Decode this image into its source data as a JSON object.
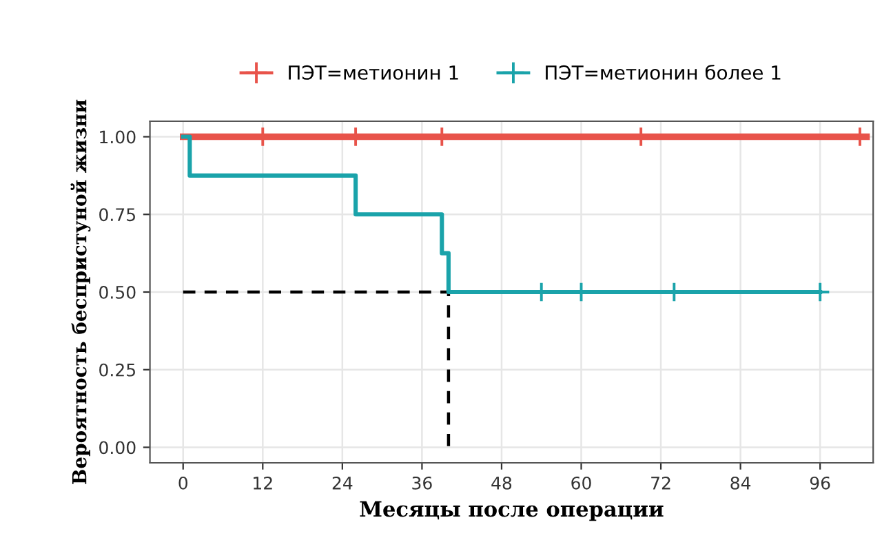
{
  "chart_data": {
    "type": "step",
    "xlabel": "Месяцы после операции",
    "ylabel": "Вероятность беспристуной жизни",
    "series": [
      {
        "name": "ПЭТ=метионин 1",
        "color": "#e8534a",
        "x": [
          0,
          12,
          26,
          39,
          69,
          102,
          103
        ],
        "values": [
          1,
          1,
          1,
          1,
          1,
          1,
          1
        ]
      },
      {
        "name": "ПЭТ=метионин более 1",
        "color": "#1aa3aa",
        "x": [
          0,
          1,
          26,
          39,
          40,
          54,
          60,
          74,
          96
        ],
        "values": [
          1,
          0.875,
          0.75,
          0.625,
          0.5,
          0.5,
          0.5,
          0.5,
          0.5
        ]
      },
      {
        "type": "scatter",
        "marker": "cross",
        "color": "#e8534a",
        "x": [
          12,
          26,
          39,
          69,
          102
        ],
        "values": [
          1,
          1,
          1,
          1,
          1
        ]
      },
      {
        "type": "scatter",
        "marker": "cross",
        "color": "#1aa3aa",
        "x": [
          54,
          60,
          74,
          96
        ],
        "values": [
          0.5,
          0.5,
          0.5,
          0.5
        ]
      },
      {
        "type": "line",
        "color": "#000000",
        "line_style": "dashed",
        "x": [
          0,
          40,
          40
        ],
        "values": [
          0.5,
          0.5,
          0
        ]
      }
    ],
    "xlim": [
      -5,
      104
    ],
    "xticks": [
      0,
      12,
      24,
      36,
      48,
      60,
      72,
      84,
      96
    ],
    "ylim": [
      -0.05,
      1.05
    ],
    "yticks": [
      {
        "value": 0,
        "label": "0.00"
      },
      {
        "value": 0.25,
        "label": "0.25"
      },
      {
        "value": 0.5,
        "label": "0.50"
      },
      {
        "value": 0.75,
        "label": "0.75"
      },
      {
        "value": 1,
        "label": "1.00"
      }
    ],
    "grid": true,
    "legend": "top"
  }
}
